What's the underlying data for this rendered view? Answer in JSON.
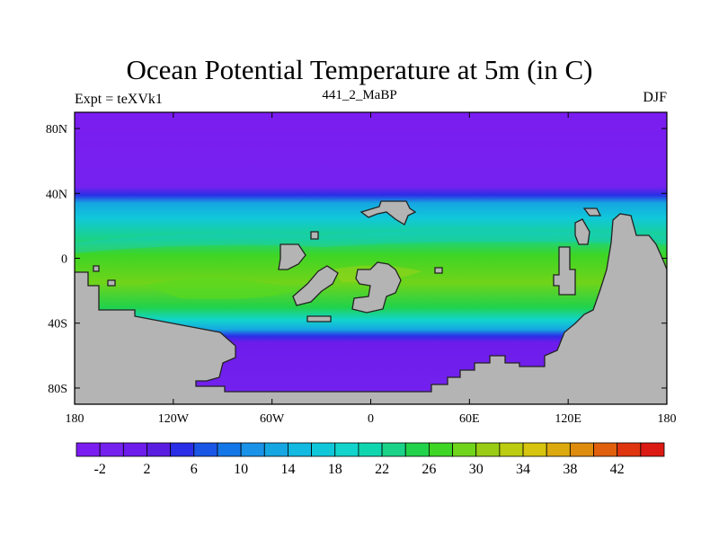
{
  "title": "Ocean Potential Temperature at 5m (in C)",
  "subtitle": "441_2_MaBP",
  "left_label": "Expt = teXVk1",
  "right_label": "DJF",
  "chart_data": {
    "type": "heatmap",
    "projection": "cylindrical-equidistant",
    "variable": "ocean potential temperature at 5m",
    "units": "C",
    "lon_range": [
      -180,
      180
    ],
    "lat_range": [
      -90,
      90
    ],
    "lon_ticks": [
      {
        "value": -180,
        "label": "180"
      },
      {
        "value": -120,
        "label": "120W"
      },
      {
        "value": -60,
        "label": "60W"
      },
      {
        "value": 0,
        "label": "0"
      },
      {
        "value": 60,
        "label": "60E"
      },
      {
        "value": 120,
        "label": "120E"
      },
      {
        "value": 180,
        "label": "180"
      }
    ],
    "lat_ticks": [
      {
        "value": 80,
        "label": "80N"
      },
      {
        "value": 40,
        "label": "40N"
      },
      {
        "value": 0,
        "label": "0"
      },
      {
        "value": -40,
        "label": "40S"
      },
      {
        "value": -80,
        "label": "80S"
      }
    ],
    "zonal_profile": [
      {
        "lat": 90,
        "temp": -3
      },
      {
        "lat": 44,
        "temp": -2
      },
      {
        "lat": 39,
        "temp": 4
      },
      {
        "lat": 34,
        "temp": 12
      },
      {
        "lat": 25,
        "temp": 17
      },
      {
        "lat": 12,
        "temp": 23
      },
      {
        "lat": 2,
        "temp": 26
      },
      {
        "lat": -15,
        "temp": 28
      },
      {
        "lat": -30,
        "temp": 24
      },
      {
        "lat": -38,
        "temp": 18
      },
      {
        "lat": -44,
        "temp": 12
      },
      {
        "lat": -48,
        "temp": 5
      },
      {
        "lat": -52,
        "temp": 0
      },
      {
        "lat": -90,
        "temp": -2
      }
    ],
    "colorbar": {
      "levels": [
        -4,
        -2,
        0,
        2,
        4,
        6,
        8,
        10,
        12,
        14,
        16,
        18,
        20,
        22,
        24,
        26,
        28,
        30,
        32,
        34,
        36,
        38,
        40,
        42,
        44
      ],
      "labels": [
        "-2",
        "2",
        "6",
        "10",
        "14",
        "18",
        "22",
        "26",
        "30",
        "34",
        "38",
        "42"
      ],
      "colors": [
        "#7b1df0",
        "#7522ef",
        "#6d1ceb",
        "#5a1ee0",
        "#2a2ee6",
        "#1a56e6",
        "#1477e8",
        "#1a92e8",
        "#16a6e2",
        "#12b9e0",
        "#10c7da",
        "#12d4cc",
        "#10d6b0",
        "#1ad388",
        "#22d24a",
        "#3ed524",
        "#70d41a",
        "#99cc14",
        "#bccc10",
        "#d6c40e",
        "#dcaa0e",
        "#de8c0e",
        "#e0600e",
        "#e03610",
        "#dc1a14"
      ]
    },
    "land_color": "#b4b4b4"
  }
}
